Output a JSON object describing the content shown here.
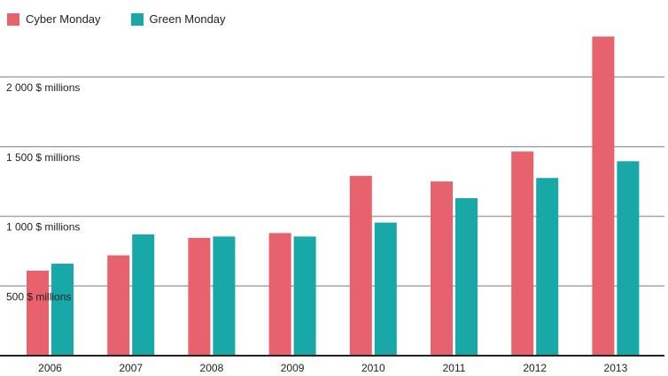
{
  "chart_data": {
    "type": "bar",
    "categories": [
      "2006",
      "2007",
      "2008",
      "2009",
      "2010",
      "2011",
      "2012",
      "2013"
    ],
    "series": [
      {
        "name": "Cyber Monday",
        "color": "#e8626e",
        "values": [
          610,
          720,
          845,
          880,
          1290,
          1250,
          1465,
          2290
        ]
      },
      {
        "name": "Green Monday",
        "color": "#18a8a8",
        "values": [
          660,
          870,
          855,
          855,
          955,
          1130,
          1275,
          1395
        ]
      }
    ],
    "y_ticks": [
      {
        "value": 500,
        "label": "500 $ millions"
      },
      {
        "value": 1000,
        "label": "1 000 $ millions"
      },
      {
        "value": 1500,
        "label": "1 500 $ millions"
      },
      {
        "value": 2000,
        "label": "2 000 $ millions"
      }
    ],
    "ylim": [
      0,
      2500
    ],
    "grid": true,
    "legend_position": "top-left",
    "title": "",
    "xlabel": "",
    "ylabel": ""
  }
}
